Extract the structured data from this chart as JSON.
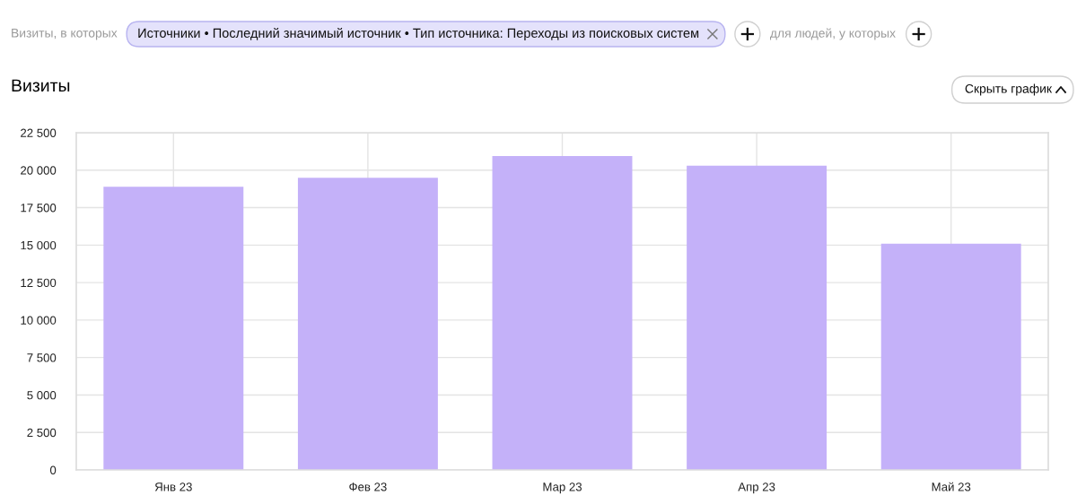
{
  "chart_data": {
    "type": "bar",
    "title": "Визиты",
    "categories": [
      "Янв 23",
      "Фев 23",
      "Мар 23",
      "Апр 23",
      "Май 23"
    ],
    "values": [
      18900,
      19500,
      20950,
      20300,
      15100
    ],
    "color": "#c4b1f9",
    "ylim": [
      0,
      22500
    ],
    "yticks": [
      0,
      {
        "value": 2500,
        "label": "2 500"
      },
      {
        "value": 5000,
        "label": "5 000"
      },
      {
        "value": 7500,
        "label": "7 500"
      },
      {
        "value": 10000,
        "label": "10 000"
      },
      {
        "value": 12500,
        "label": "12 500"
      },
      {
        "value": 15000,
        "label": "15 000"
      },
      {
        "value": 17500,
        "label": "17 500"
      },
      {
        "value": 20000,
        "label": "20 000"
      },
      {
        "value": 22500,
        "label": "22 500"
      }
    ],
    "grid": true,
    "annotations": [
      "Визиты, в которых",
      "Источники • Последний значимый источник • Тип источника: Переходы из поисковых систем",
      "для людей, у которых",
      "Скрыть график"
    ]
  }
}
